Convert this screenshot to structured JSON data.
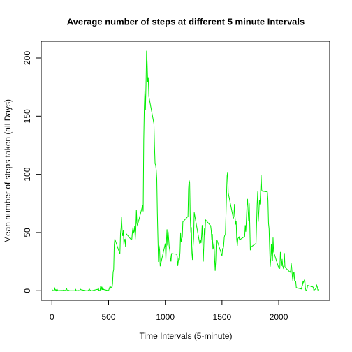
{
  "chart_data": {
    "type": "line",
    "title": "Average number of steps at different 5 minute Intervals",
    "xlabel": "Time Intervals (5-minute)",
    "ylabel": "Mean number of steps taken (all Days)",
    "x": [
      0,
      5,
      10,
      15,
      20,
      25,
      30,
      35,
      40,
      45,
      50,
      55,
      100,
      105,
      110,
      115,
      120,
      125,
      130,
      135,
      140,
      145,
      150,
      155,
      200,
      205,
      210,
      215,
      220,
      225,
      230,
      235,
      240,
      245,
      250,
      255,
      300,
      305,
      310,
      315,
      320,
      325,
      330,
      335,
      340,
      345,
      350,
      355,
      400,
      405,
      410,
      415,
      420,
      425,
      430,
      435,
      440,
      445,
      450,
      455,
      500,
      505,
      510,
      515,
      520,
      525,
      530,
      535,
      540,
      545,
      550,
      555,
      600,
      605,
      610,
      615,
      620,
      625,
      630,
      635,
      640,
      645,
      650,
      655,
      700,
      705,
      710,
      715,
      720,
      725,
      730,
      735,
      740,
      745,
      750,
      755,
      800,
      805,
      810,
      815,
      820,
      825,
      830,
      835,
      840,
      845,
      850,
      855,
      900,
      905,
      910,
      915,
      920,
      925,
      930,
      935,
      940,
      945,
      950,
      955,
      1000,
      1005,
      1010,
      1015,
      1020,
      1025,
      1030,
      1035,
      1040,
      1045,
      1050,
      1055,
      1100,
      1105,
      1110,
      1115,
      1120,
      1125,
      1130,
      1135,
      1140,
      1145,
      1150,
      1155,
      1200,
      1205,
      1210,
      1215,
      1220,
      1225,
      1230,
      1235,
      1240,
      1245,
      1250,
      1255,
      1300,
      1305,
      1310,
      1315,
      1320,
      1325,
      1330,
      1335,
      1340,
      1345,
      1350,
      1355,
      1400,
      1405,
      1410,
      1415,
      1420,
      1425,
      1430,
      1435,
      1440,
      1445,
      1450,
      1455,
      1500,
      1505,
      1510,
      1515,
      1520,
      1525,
      1530,
      1535,
      1540,
      1545,
      1550,
      1555,
      1600,
      1605,
      1610,
      1615,
      1620,
      1625,
      1630,
      1635,
      1640,
      1645,
      1650,
      1655,
      1700,
      1705,
      1710,
      1715,
      1720,
      1725,
      1730,
      1735,
      1740,
      1745,
      1750,
      1755,
      1800,
      1805,
      1810,
      1815,
      1820,
      1825,
      1830,
      1835,
      1840,
      1845,
      1850,
      1855,
      1900,
      1905,
      1910,
      1915,
      1920,
      1925,
      1930,
      1935,
      1940,
      1945,
      1950,
      1955,
      2000,
      2005,
      2010,
      2015,
      2020,
      2025,
      2030,
      2035,
      2040,
      2045,
      2050,
      2055,
      2100,
      2105,
      2110,
      2115,
      2120,
      2125,
      2130,
      2135,
      2140,
      2145,
      2150,
      2155,
      2200,
      2205,
      2210,
      2215,
      2220,
      2225,
      2230,
      2235,
      2240,
      2245,
      2250,
      2255,
      2300,
      2305,
      2310,
      2315,
      2320,
      2325,
      2330,
      2335,
      2340,
      2345,
      2350,
      2355
    ],
    "series": [
      {
        "color": "#00ee00",
        "values": [
          1.7,
          0.3,
          0.1,
          0.2,
          0.1,
          2.1,
          0.5,
          0.9,
          0,
          1.5,
          0.3,
          0.1,
          0.3,
          0.7,
          0.2,
          0.3,
          0,
          1.1,
          1.8,
          0.2,
          0.2,
          0.4,
          0.3,
          0,
          0,
          0,
          1.1,
          0,
          0,
          0.1,
          0,
          0.2,
          0,
          0,
          1.5,
          0.9,
          0,
          0,
          0,
          0,
          0.2,
          0.6,
          1.6,
          0.6,
          0.5,
          0.1,
          0,
          0,
          1.2,
          0.9,
          2.6,
          0,
          0.3,
          0.4,
          4.1,
          0.7,
          3.5,
          0.8,
          3.1,
          1.1,
          0,
          1.6,
          3,
          2.2,
          3.3,
          3,
          2.1,
          6.1,
          16,
          18.3,
          39.5,
          44.5,
          31.5,
          49.3,
          53.8,
          63.5,
          50,
          47,
          52.2,
          39.3,
          44,
          44.2,
          37.4,
          49,
          43.8,
          44.4,
          50.5,
          54.5,
          49.9,
          51,
          55.7,
          44.3,
          52.3,
          69.5,
          57.8,
          56.2,
          73.4,
          68.2,
          129.4,
          157.5,
          171.2,
          155.4,
          177.3,
          206.2,
          195.9,
          179.6,
          183.4,
          167,
          143.5,
          124,
          109.1,
          108.1,
          103.7,
          95.9,
          66.2,
          45.2,
          24.8,
          38.8,
          35,
          21,
          40.6,
          26.1,
          42.4,
          52.7,
          38.9,
          50.8,
          44.3,
          37.4,
          34.7,
          28.3,
          25.1,
          31.9,
          31.4,
          29.7,
          21.3,
          25.5,
          28.4,
          26.5,
          33.4,
          50,
          42,
          44.6,
          46,
          59.2,
          63.9,
          87.7,
          94.8,
          92.8,
          63.4,
          50.2,
          54.5,
          32.4,
          26.5,
          37.7,
          45.1,
          67.3,
          42.3,
          39.9,
          43.3,
          40.9,
          46.2,
          56.4,
          42.8,
          25.1,
          40,
          53.5,
          47.3,
          60.8,
          55.8,
          51.9,
          43.6,
          48.7,
          35.5,
          37.5,
          41.8,
          27.5,
          17.1,
          26.1,
          43.6,
          43.8,
          30,
          36.1,
          35.5,
          38.8,
          46,
          47.8,
          48.1,
          65.3,
          82.9,
          98.7,
          102.1,
          84,
          62.1,
          64.1,
          74.5,
          63.2,
          56.9,
          59.8,
          43.9,
          38.6,
          44.7,
          45.5,
          46.2,
          43.7,
          46.6,
          56.3,
          50.7,
          61.2,
          72.7,
          78.9,
          68.9,
          59.7,
          75.1,
          56.5,
          34.8,
          37.5,
          40.7,
          58,
          74.7,
          85.3,
          59.3,
          67.8,
          77.7,
          74.2,
          85.3,
          99.5,
          86.6,
          85.6,
          84.9,
          77.8,
          58,
          53.4,
          36.3,
          20.7,
          27.4,
          40,
          30.2,
          25.5,
          45.7,
          33.5,
          19.6,
          19,
          19.3,
          33.3,
          26.8,
          21.2,
          27.3,
          21.3,
          19.5,
          21.3,
          32.3,
          20.2,
          15.9,
          17.2,
          23.5,
          19.2,
          12.5,
          8,
          14.7,
          16.3,
          8.7,
          7.8,
          8.1,
          2.6,
          1.5,
          3.7,
          4.8,
          8.5,
          7.1,
          8.7,
          9.8,
          2.2,
          0.3,
          0.1,
          1.6,
          4.6,
          3.3,
          2.8,
          0,
          0.8,
          1,
          1.6,
          2.6,
          4.7,
          3.3,
          0.6,
          0.2,
          1.1
        ]
      }
    ],
    "xlim": [
      -94.2,
      2449.2
    ],
    "xticks": [
      0,
      500,
      1000,
      1500,
      2000
    ],
    "ylim": [
      -8.25,
      214.4
    ],
    "yticks": [
      0,
      50,
      100,
      150,
      200
    ]
  }
}
